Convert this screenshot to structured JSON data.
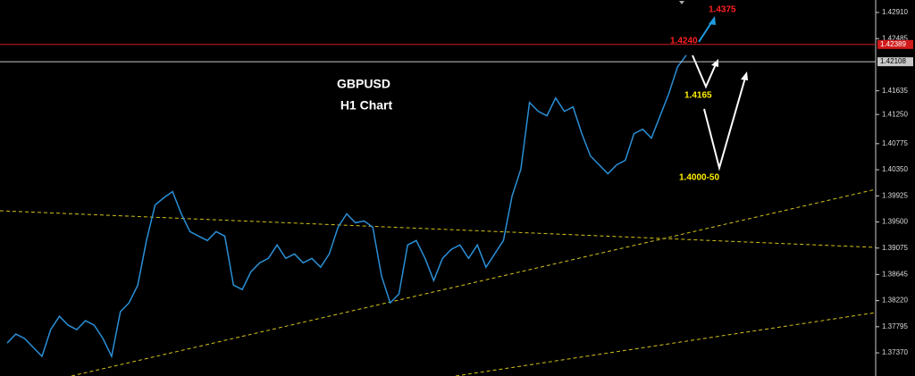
{
  "chart_data": {
    "type": "line",
    "title": "GBPUSD",
    "subtitle": "H1 Chart",
    "color": "#2a8fd6",
    "values": [
      1.3753,
      1.37675,
      1.37603,
      1.37458,
      1.37313,
      1.37748,
      1.37965,
      1.3782,
      1.37748,
      1.37893,
      1.3782,
      1.37603,
      1.37313,
      1.38038,
      1.38183,
      1.38473,
      1.39198,
      1.39778,
      1.39894,
      1.39995,
      1.39633,
      1.39343,
      1.3927,
      1.39198,
      1.39343,
      1.3927,
      1.38473,
      1.384,
      1.3869,
      1.38835,
      1.38908,
      1.39125,
      1.38908,
      1.3898,
      1.38835,
      1.38908,
      1.38763,
      1.3898,
      1.39415,
      1.39633,
      1.39488,
      1.39517,
      1.39415,
      1.38618,
      1.38183,
      1.38328,
      1.39125,
      1.39198,
      1.38908,
      1.38545,
      1.38908,
      1.39053,
      1.39125,
      1.38908,
      1.39125,
      1.38763,
      1.3898,
      1.39198,
      1.39923,
      1.40358,
      1.41445,
      1.413,
      1.41228,
      1.41518,
      1.413,
      1.41373,
      1.40938,
      1.40575,
      1.4043,
      1.40285,
      1.4043,
      1.40503,
      1.40938,
      1.4101,
      1.40865,
      1.41228,
      1.4159,
      1.42025,
      1.42214
    ],
    "ylim": [
      1.36993,
      1.43113
    ],
    "yticks": [
      {
        "value": 1.4291,
        "label": "1.42910"
      },
      1.42485,
      1.41635,
      {
        "value": 1.4125,
        "label": "1.41250"
      },
      1.40775,
      {
        "value": 1.4035,
        "label": "1.40350"
      },
      1.39925,
      {
        "value": 1.395,
        "label": "1.39500"
      },
      1.39075,
      1.38645,
      {
        "value": 1.3822,
        "label": "1.38220"
      },
      1.37795,
      {
        "value": 1.3737,
        "label": "1.37370"
      }
    ],
    "price_lines": [
      {
        "value": 1.42389,
        "color": "#d11a1a"
      },
      {
        "value": 1.42108,
        "color": "#c8c8c8"
      }
    ],
    "annotations": [
      "1.4375",
      "1.4240",
      "1.4165",
      "1.4000-50"
    ]
  }
}
